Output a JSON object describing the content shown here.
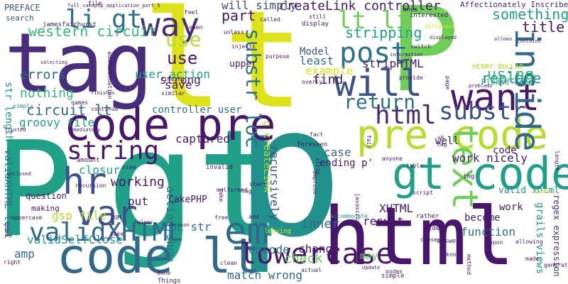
{
  "palette": {
    "dark_purple": "#46176b",
    "purple": "#472d7b",
    "indigo": "#3b528b",
    "blue": "#31688e",
    "steel": "#2c728e",
    "teal": "#21918c",
    "teal_green": "#1fa187",
    "green": "#35b779",
    "light_green": "#6ece58",
    "lime": "#b5de2b",
    "yellow": "#dde318"
  },
  "words": [
    {
      "text": "tag",
      "color": "purple"
    },
    {
      "text": "lt",
      "color": "yellow"
    },
    {
      "text": "P",
      "color": "light_green"
    },
    {
      "text": "gt",
      "color": "teal_green"
    },
    {
      "text": "p",
      "color": "teal"
    },
    {
      "text": "P",
      "color": "teal_green"
    },
    {
      "text": "code pre",
      "color": "dark_purple"
    },
    {
      "text": "code lt",
      "color": "blue"
    },
    {
      "text": "html",
      "color": "dark_purple"
    },
    {
      "text": "pre code",
      "color": "lime"
    },
    {
      "text": "gt code",
      "color": "teal_green"
    },
    {
      "text": "way",
      "color": "purple"
    },
    {
      "text": "li gt",
      "color": "steel"
    },
    {
      "text": "want",
      "color": "dark_purple"
    },
    {
      "text": "will",
      "color": "indigo"
    },
    {
      "text": "post",
      "color": "steel"
    },
    {
      "text": "lt li",
      "color": "light_green"
    },
    {
      "text": "inside",
      "color": "blue"
    },
    {
      "text": "text",
      "color": "light_green"
    },
    {
      "text": "em",
      "color": "blue"
    },
    {
      "text": "lowercase",
      "color": "dark_purple"
    },
    {
      "text": "validXHTML",
      "color": "blue"
    },
    {
      "text": "var",
      "color": "indigo"
    },
    {
      "text": "hr",
      "color": "indigo"
    },
    {
      "text": "string",
      "color": "dark_purple"
    },
    {
      "text": "html",
      "color": "purple"
    },
    {
      "text": "substr",
      "color": "indigo"
    },
    {
      "text": "substr loc",
      "color": "steel"
    },
    {
      "text": "return",
      "color": "steel"
    },
    {
      "text": "use",
      "color": "lime"
    },
    {
      "text": "western circuit",
      "color": "green"
    },
    {
      "text": "circuit lt",
      "color": "blue"
    },
    {
      "text": "errors",
      "color": "blue"
    },
    {
      "text": "nothing",
      "color": "green"
    },
    {
      "text": "something",
      "color": "teal_green"
    },
    {
      "text": "title",
      "color": "dark_purple"
    },
    {
      "text": "replace",
      "color": "teal"
    },
    {
      "text": "using",
      "color": "green"
    },
    {
      "text": "use",
      "color": "dark_purple"
    },
    {
      "text": "part",
      "color": "dark_purple"
    },
    {
      "text": "stripping",
      "color": "teal_green"
    },
    {
      "text": "will simply",
      "color": "indigo"
    },
    {
      "text": "createLink controller",
      "color": "dark_purple"
    },
    {
      "text": "stripHTML",
      "color": "dark_purple"
    },
    {
      "text": "least",
      "color": "steel"
    },
    {
      "text": "example",
      "color": "yellow"
    },
    {
      "text": "Model",
      "color": "indigo"
    },
    {
      "text": "find",
      "color": "dark_purple"
    },
    {
      "text": "strong",
      "color": "dark_purple"
    },
    {
      "text": "user action",
      "color": "teal_green"
    },
    {
      "text": "save",
      "color": "dark_purple"
    },
    {
      "text": "controller user",
      "color": "steel"
    },
    {
      "text": "groovy file",
      "color": "teal_green"
    },
    {
      "text": "str length",
      "color": "teal"
    },
    {
      "text": "validXHTML test",
      "color": "steel"
    },
    {
      "text": "closure",
      "color": "teal_green"
    },
    {
      "text": "working",
      "color": "dark_purple"
    },
    {
      "text": "put",
      "color": "dark_purple"
    },
    {
      "text": "gsp file",
      "color": "lime"
    },
    {
      "text": "validSelfClose",
      "color": "teal"
    },
    {
      "text": "loc str",
      "color": "steel"
    },
    {
      "text": "action show",
      "color": "steel"
    },
    {
      "text": "encode",
      "color": "blue"
    },
    {
      "text": "recursively",
      "color": "indigo"
    },
    {
      "text": "inner",
      "color": "blue"
    },
    {
      "text": "change",
      "color": "dark_purple"
    },
    {
      "text": "check",
      "color": "light_green"
    },
    {
      "text": "match wrong",
      "color": "blue"
    },
    {
      "text": "amp",
      "color": "blue"
    },
    {
      "text": "CakePHP",
      "color": "dark_purple"
    },
    {
      "text": "captured",
      "color": "dark_purple"
    },
    {
      "text": "XHTML",
      "color": "dark_purple"
    },
    {
      "text": "result",
      "color": "dark_purple"
    },
    {
      "text": "ending p'",
      "color": "dark_purple"
    },
    {
      "text": "case",
      "color": "blue"
    },
    {
      "text": "well",
      "color": "dark_purple"
    },
    {
      "text": "work nicely",
      "color": "dark_purple"
    },
    {
      "text": "code",
      "color": "dark_purple"
    },
    {
      "text": "valid xhtml",
      "color": "teal"
    },
    {
      "text": "work",
      "color": "dark_purple"
    },
    {
      "text": "become",
      "color": "dark_purple"
    },
    {
      "text": "function",
      "color": "steel"
    },
    {
      "text": "grails views",
      "color": "teal"
    },
    {
      "text": "regex expression",
      "color": "purple"
    },
    {
      "text": "may",
      "color": "light_green"
    },
    {
      "text": "HENRY BULLAR",
      "color": "lime"
    },
    {
      "text": "Please help",
      "color": "teal_green"
    },
    {
      "text": "Affectionately Inscribed",
      "color": "purple"
    },
    {
      "text": "upper",
      "color": "dark_purple"
    },
    {
      "text": "g createLink",
      "color": "lime"
    },
    {
      "text": "question",
      "color": "dark_purple"
    },
    {
      "text": "making",
      "color": "dark_purple"
    },
    {
      "text": "PREFACE",
      "color": "indigo"
    },
    {
      "text": "search",
      "color": "indigo"
    },
    {
      "text": "jamesfairhurst",
      "color": "dark_purple"
    },
    {
      "text": "full_cakephp_application_part_5",
      "color": "dark_purple"
    },
    {
      "text": "unless",
      "color": "dark_purple"
    },
    {
      "text": "injects",
      "color": "dark_purple"
    },
    {
      "text": "called",
      "color": "dark_purple"
    },
    {
      "text": "still",
      "color": "dark_purple"
    },
    {
      "text": "display",
      "color": "dark_purple"
    },
    {
      "text": "ones",
      "color": "dark_purple"
    },
    {
      "text": "interested",
      "color": "dark_purple"
    },
    {
      "text": "different",
      "color": "yellow"
    },
    {
      "text": "switch",
      "color": "dark_purple"
    },
    {
      "text": "information",
      "color": "dark_purple"
    },
    {
      "text": "provide",
      "color": "dark_purple"
    },
    {
      "text": "problems",
      "color": "dark_purple"
    },
    {
      "text": "allows",
      "color": "dark_purple"
    },
    {
      "text": "contains",
      "color": "dark_purple"
    },
    {
      "text": "overly",
      "color": "dark_purple"
    },
    {
      "text": "open",
      "color": "dark_purple"
    },
    {
      "text": "Feel",
      "color": "dark_purple"
    },
    {
      "text": "simply",
      "color": "teal"
    },
    {
      "text": "finishes",
      "color": "dark_purple"
    },
    {
      "text": "trusted",
      "color": "dark_purple"
    },
    {
      "text": "immediately",
      "color": "dark_purple"
    },
    {
      "text": "continue",
      "color": "dark_purple"
    },
    {
      "text": "unclosed",
      "color": "dark_purple"
    },
    {
      "text": "Things",
      "color": "dark_purple"
    },
    {
      "text": "version",
      "color": "dark_purple"
    },
    {
      "text": "invalid",
      "color": "dark_purple"
    },
    {
      "text": "malformed",
      "color": "dark_purple"
    },
    {
      "text": "log",
      "color": "dark_purple"
    },
    {
      "text": "add",
      "color": "dark_purple"
    },
    {
      "text": "start",
      "color": "dark_purple"
    },
    {
      "text": "leaving",
      "color": "yellow"
    },
    {
      "text": "fact",
      "color": "dark_purple"
    },
    {
      "text": "foreseen",
      "color": "dark_purple"
    },
    {
      "text": "fair",
      "color": "dark_purple"
    },
    {
      "text": "table",
      "color": "dark_purple"
    },
    {
      "text": "anyone",
      "color": "dark_purple"
    },
    {
      "text": "img",
      "color": "dark_purple"
    },
    {
      "text": "crude",
      "color": "yellow"
    },
    {
      "text": "length",
      "color": "dark_purple"
    },
    {
      "text": "accommodate",
      "color": "teal"
    },
    {
      "text": "javascript",
      "color": "dark_purple"
    },
    {
      "text": "actual",
      "color": "dark_purple"
    },
    {
      "text": "idea",
      "color": "dark_purple"
    },
    {
      "text": "closed",
      "color": "dark_purple"
    },
    {
      "text": "answer",
      "color": "dark_purple"
    },
    {
      "text": "know",
      "color": "dark_purple"
    },
    {
      "text": "allowing",
      "color": "dark_purple"
    },
    {
      "text": "made",
      "color": "dark_purple"
    },
    {
      "text": "generated",
      "color": "dark_purple"
    },
    {
      "text": "right",
      "color": "dark_purple"
    },
    {
      "text": "clean",
      "color": "dark_purple"
    },
    {
      "text": "done",
      "color": "dark_purple"
    },
    {
      "text": "simple",
      "color": "dark_purple"
    },
    {
      "text": "uppercase",
      "color": "dark_purple"
    },
    {
      "text": "good",
      "color": "dark_purple"
    },
    {
      "text": "DOM",
      "color": "dark_purple"
    },
    {
      "text": "Cake",
      "color": "dark_purple"
    },
    {
      "text": "helper",
      "color": "dark_purple"
    },
    {
      "text": "selecting",
      "color": "dark_purple"
    },
    {
      "text": "similar",
      "color": "dark_purple"
    },
    {
      "text": "finding",
      "color": "dark_purple"
    },
    {
      "text": "names",
      "color": "dark_purple"
    },
    {
      "text": "amount",
      "color": "dark_purple"
    },
    {
      "text": "recursion",
      "color": "dark_purple"
    },
    {
      "text": "view",
      "color": "dark_purple"
    },
    {
      "text": "file",
      "color": "dark_purple"
    },
    {
      "text": "addPunctuation",
      "color": "dark_purple"
    },
    {
      "text": "upon",
      "color": "dark_purple"
    },
    {
      "text": "Update",
      "color": "dark_purple"
    },
    {
      "text": "method",
      "color": "dark_purple"
    },
    {
      "text": "displayed",
      "color": "dark_purple"
    },
    {
      "text": "page",
      "color": "dark_purple"
    },
    {
      "text": "purpose",
      "color": "dark_purple"
    },
    {
      "text": "improve",
      "color": "dark_purple"
    },
    {
      "text": "strip",
      "color": "dark_purple"
    },
    {
      "text": "script",
      "color": "dark_purple"
    },
    {
      "text": "rather",
      "color": "dark_purple"
    },
    {
      "text": "free",
      "color": "dark_purple"
    },
    {
      "text": "take",
      "color": "dark_purple"
    },
    {
      "text": "nodes",
      "color": "dark_purple"
    },
    {
      "text": "uk",
      "color": "dark_purple"
    },
    {
      "text": "tag",
      "color": "dark_purple"
    }
  ]
}
